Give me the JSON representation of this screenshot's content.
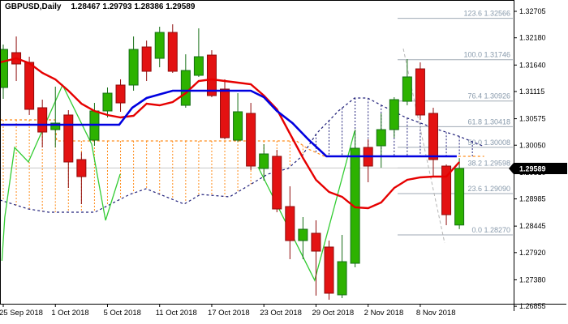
{
  "header": {
    "symbol_period": "GBPUSD,Daily",
    "ohlc_values": "1.28467 1.29793 1.28386 1.29589"
  },
  "price_badge": "1.29589",
  "colors": {
    "bull_fill": "#2db200",
    "bull_border": "#156e15",
    "bear_fill": "#e31212",
    "bear_border": "#8f0b0b",
    "tenkan": "#e60000",
    "kijun": "#0000e0",
    "senkou_a": "#ff8c1a",
    "senkou_b": "#20207a",
    "chikou": "#33cc33",
    "fib_line": "#9fa9b4",
    "fib_label": "#8799ab",
    "hline": "#c8c8c8",
    "trendline": "#b5b5b5",
    "axis": "#000000",
    "badge_bg": "#000000",
    "badge_text": "#ffffff"
  },
  "axis": {
    "price_ticks": [
      "1.32705",
      "1.32180",
      "1.31640",
      "1.31115",
      "1.30575",
      "1.30050",
      "1.29510",
      "1.28985",
      "1.28445",
      "1.27920",
      "1.27380",
      "1.26855"
    ],
    "date_ticks": [
      {
        "bar": 0,
        "label": "25 Sep 2018"
      },
      {
        "bar": 4,
        "label": "1 Oct 2018"
      },
      {
        "bar": 8,
        "label": "5 Oct 2018"
      },
      {
        "bar": 12,
        "label": "11 Oct 2018"
      },
      {
        "bar": 16,
        "label": "17 Oct 2018"
      },
      {
        "bar": 20,
        "label": "23 Oct 2018"
      },
      {
        "bar": 24,
        "label": "29 Oct 2018"
      },
      {
        "bar": 28,
        "label": "2 Nov 2018"
      },
      {
        "bar": 32,
        "label": "8 Nov 2018"
      }
    ]
  },
  "chart_data": {
    "type": "candlestick",
    "title": "GBPUSD,Daily",
    "symbol": "GBPUSD",
    "timeframe": "Daily",
    "last_price": 1.29589,
    "current_ohlc": {
      "open": 1.28467,
      "high": 1.29793,
      "low": 1.28386,
      "close": 1.29589
    },
    "price_axis": {
      "top": 1.3293,
      "bottom": 1.26905
    },
    "grid": false,
    "candles": [
      {
        "o": 1.31195,
        "h": 1.32046,
        "l": 1.3097,
        "c": 1.3195
      },
      {
        "o": 1.31886,
        "h": 1.32207,
        "l": 1.31323,
        "c": 1.31661
      },
      {
        "o": 1.31693,
        "h": 1.31805,
        "l": 1.30649,
        "c": 1.30761
      },
      {
        "o": 1.30793,
        "h": 1.30954,
        "l": 1.30006,
        "c": 1.30311
      },
      {
        "o": 1.30359,
        "h": 1.31211,
        "l": 1.30006,
        "c": 1.30488
      },
      {
        "o": 1.30649,
        "h": 1.30745,
        "l": 1.29202,
        "c": 1.29717
      },
      {
        "o": 1.29765,
        "h": 1.2991,
        "l": 1.28881,
        "c": 1.29427
      },
      {
        "o": 1.3015,
        "h": 1.30889,
        "l": 1.30038,
        "c": 1.30729
      },
      {
        "o": 1.30729,
        "h": 1.31195,
        "l": 1.306,
        "c": 1.31082
      },
      {
        "o": 1.31243,
        "h": 1.31356,
        "l": 1.30713,
        "c": 1.30889
      },
      {
        "o": 1.31243,
        "h": 1.32207,
        "l": 1.31131,
        "c": 1.3195
      },
      {
        "o": 1.31998,
        "h": 1.32126,
        "l": 1.31323,
        "c": 1.31516
      },
      {
        "o": 1.31773,
        "h": 1.324,
        "l": 1.31596,
        "c": 1.32287
      },
      {
        "o": 1.32287,
        "h": 1.32448,
        "l": 1.31484,
        "c": 1.31516
      },
      {
        "o": 1.30841,
        "h": 1.31853,
        "l": 1.30793,
        "c": 1.31532
      },
      {
        "o": 1.31436,
        "h": 1.32368,
        "l": 1.31404,
        "c": 1.31805
      },
      {
        "o": 1.31837,
        "h": 1.31934,
        "l": 1.31002,
        "c": 1.31034
      },
      {
        "o": 1.31163,
        "h": 1.31356,
        "l": 1.30166,
        "c": 1.30199
      },
      {
        "o": 1.3015,
        "h": 1.31082,
        "l": 1.30118,
        "c": 1.30713
      },
      {
        "o": 1.30681,
        "h": 1.30889,
        "l": 1.29556,
        "c": 1.29636
      },
      {
        "o": 1.29588,
        "h": 1.3007,
        "l": 1.29347,
        "c": 1.29877
      },
      {
        "o": 1.29829,
        "h": 1.29958,
        "l": 1.2872,
        "c": 1.28785
      },
      {
        "o": 1.28833,
        "h": 1.29235,
        "l": 1.27789,
        "c": 1.28158
      },
      {
        "o": 1.28158,
        "h": 1.28624,
        "l": 1.27789,
        "c": 1.28383
      },
      {
        "o": 1.28303,
        "h": 1.2856,
        "l": 1.27066,
        "c": 1.27949
      },
      {
        "o": 1.2803,
        "h": 1.28158,
        "l": 1.26985,
        "c": 1.27114
      },
      {
        "o": 1.27082,
        "h": 1.28271,
        "l": 1.27017,
        "c": 1.2774
      },
      {
        "o": 1.27708,
        "h": 1.30359,
        "l": 1.27628,
        "c": 1.2999
      },
      {
        "o": 1.30006,
        "h": 1.30166,
        "l": 1.29315,
        "c": 1.29636
      },
      {
        "o": 1.30038,
        "h": 1.30681,
        "l": 1.29604,
        "c": 1.30359
      },
      {
        "o": 1.30359,
        "h": 1.31002,
        "l": 1.30199,
        "c": 1.30954
      },
      {
        "o": 1.30921,
        "h": 1.31757,
        "l": 1.30841,
        "c": 1.31404
      },
      {
        "o": 1.31564,
        "h": 1.31693,
        "l": 1.30552,
        "c": 1.30649
      },
      {
        "o": 1.30681,
        "h": 1.30793,
        "l": 1.29444,
        "c": 1.29765
      },
      {
        "o": 1.29636,
        "h": 1.29669,
        "l": 1.28463,
        "c": 1.28672
      },
      {
        "o": 1.28467,
        "h": 1.29793,
        "l": 1.28386,
        "c": 1.29589
      }
    ],
    "ichimoku": {
      "tenkan": [
        [
          -0.25,
          1.31693
        ],
        [
          1,
          1.31773
        ],
        [
          2,
          1.31677
        ],
        [
          3,
          1.31484
        ],
        [
          4,
          1.31356
        ],
        [
          5,
          1.31131
        ],
        [
          6,
          1.30873
        ],
        [
          7,
          1.30729
        ],
        [
          8,
          1.30649
        ],
        [
          9,
          1.306
        ],
        [
          10,
          1.30632
        ],
        [
          11,
          1.30873
        ],
        [
          12,
          1.30841
        ],
        [
          13,
          1.30905
        ],
        [
          14,
          1.31082
        ],
        [
          15,
          1.31323
        ],
        [
          16,
          1.31356
        ],
        [
          17,
          1.31323
        ],
        [
          18,
          1.31291
        ],
        [
          19,
          1.31259
        ],
        [
          20,
          1.31034
        ],
        [
          21,
          1.30761
        ],
        [
          22,
          1.30279
        ],
        [
          23,
          1.29797
        ],
        [
          24,
          1.29363
        ],
        [
          25,
          1.29122
        ],
        [
          26,
          1.29026
        ],
        [
          27,
          1.28817
        ],
        [
          28,
          1.28801
        ],
        [
          29,
          1.28913
        ],
        [
          30,
          1.29202
        ],
        [
          31,
          1.29363
        ],
        [
          32,
          1.29411
        ],
        [
          33,
          1.29427
        ],
        [
          34,
          1.29427
        ],
        [
          35,
          1.29717
        ]
      ],
      "kijun": [
        [
          -0.25,
          1.30456
        ],
        [
          8.9,
          1.30456
        ],
        [
          9.9,
          1.30793
        ],
        [
          11,
          1.30986
        ],
        [
          13,
          1.31131
        ],
        [
          19,
          1.31131
        ],
        [
          20,
          1.31002
        ],
        [
          21,
          1.30729
        ],
        [
          22.2,
          1.30488
        ],
        [
          23.4,
          1.30166
        ],
        [
          24.8,
          1.29829
        ],
        [
          34.8,
          1.29829
        ]
      ],
      "senkou_a": [
        [
          -0.25,
          1.30552
        ],
        [
          3.98,
          1.30552
        ],
        [
          4.1,
          1.30134
        ],
        [
          22.5,
          1.30134
        ],
        [
          23.4,
          1.29974
        ],
        [
          24.66,
          1.29829
        ],
        [
          36.9,
          1.29829
        ]
      ],
      "senkou_b": [
        [
          -0.25,
          1.28961
        ],
        [
          1.93,
          1.28785
        ],
        [
          3.49,
          1.2872
        ],
        [
          7.03,
          1.2872
        ],
        [
          9.71,
          1.29074
        ],
        [
          10.96,
          1.29186
        ],
        [
          13.88,
          1.28881
        ],
        [
          15.13,
          1.29074
        ],
        [
          17.37,
          1.29026
        ],
        [
          19.05,
          1.29283
        ],
        [
          20.3,
          1.29476
        ],
        [
          21.86,
          1.29588
        ],
        [
          22.91,
          1.29829
        ],
        [
          24.03,
          1.30279
        ],
        [
          25.72,
          1.30729
        ],
        [
          26.96,
          1.30986
        ],
        [
          27.96,
          1.30986
        ],
        [
          29.02,
          1.30841
        ],
        [
          30.88,
          1.306
        ],
        [
          33.37,
          1.30359
        ],
        [
          34.93,
          1.30231
        ],
        [
          35.86,
          1.30134
        ],
        [
          36.92,
          1.30022
        ]
      ],
      "chikou_segments": [
        [
          [
            -0.1,
            1.27757
          ],
          [
            0.12,
            1.28624
          ],
          [
            0.87,
            1.30006
          ],
          [
            1.93,
            1.29717
          ],
          [
            4.55,
            1.31243
          ],
          [
            6.79,
            1.3007
          ],
          [
            7.85,
            1.2856
          ],
          [
            8.97,
            1.29476
          ]
        ],
        [
          [
            19.55,
            1.2962
          ],
          [
            23.9,
            1.27371
          ],
          [
            26.96,
            1.30327
          ]
        ]
      ]
    },
    "fibonacci": [
      {
        "level": "123.6",
        "price": 1.32566,
        "label": "123.6 1.32566"
      },
      {
        "level": "100.0",
        "price": 1.31746,
        "label": "100.0 1.31746"
      },
      {
        "level": "76.4",
        "price": 1.30926,
        "label": "76.4 1.30926"
      },
      {
        "level": "61.8",
        "price": 1.30418,
        "label": "61.8 1.30418"
      },
      {
        "level": "50.0",
        "price": 1.30008,
        "label": "50.0 1.30008"
      },
      {
        "level": "38.2",
        "price": 1.29598,
        "label": "38.2 1.29598"
      },
      {
        "level": "23.6",
        "price": 1.2909,
        "label": "23.6 1.29090"
      },
      {
        "level": "0.0",
        "price": 1.2827,
        "label": "0.0 1.28270"
      }
    ],
    "horizontal_line_price": 1.29598,
    "trendline_dashed": [
      [
        30.7,
        1.31966
      ],
      [
        33.87,
        1.2811
      ]
    ]
  }
}
